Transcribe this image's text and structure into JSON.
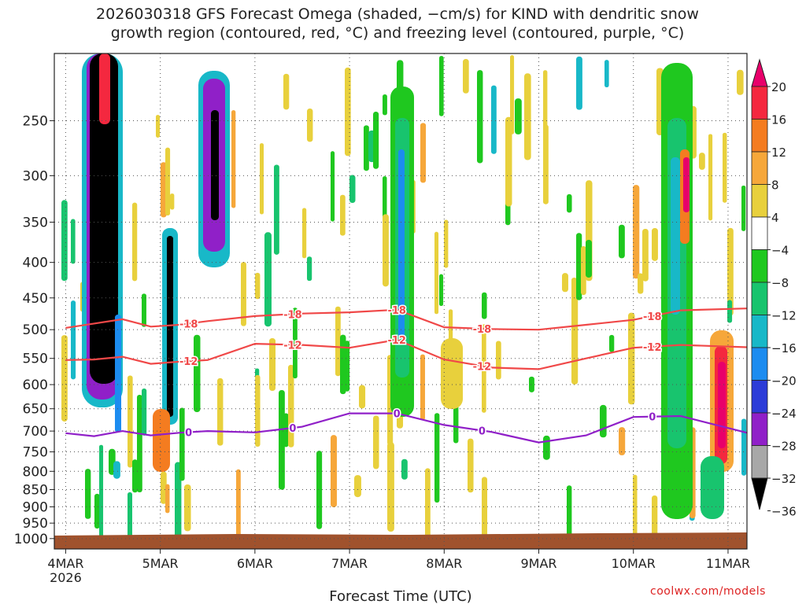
{
  "title_line1": "2026030318 GFS Forecast Omega (shaded, −cm/s) for KIND with dendritic snow",
  "title_line2": "growth region (contoured, red, °C) and freezing level (contoured, purple, °C)",
  "watermark": "coolwx.com/models",
  "chart_data": {
    "type": "heatmap",
    "xlabel": "Forecast Time (UTC)",
    "ylabel": "",
    "x_ticks": [
      "4MAR",
      "5MAR",
      "6MAR",
      "7MAR",
      "8MAR",
      "9MAR",
      "10MAR",
      "11MAR"
    ],
    "x_year_label": "2026",
    "y_ticks": [
      250,
      300,
      350,
      400,
      450,
      500,
      550,
      600,
      650,
      700,
      750,
      800,
      850,
      900,
      950,
      1000
    ],
    "y_axis": "pressure (hPa), log scale, inverted",
    "ylim": [
      1035,
      200
    ],
    "xlim_days": [
      -0.12,
      7.2
    ],
    "grid": true,
    "colorbar": {
      "tick_labels": [
        "20",
        "16",
        "12",
        "8",
        "4",
        "−4",
        "−8",
        "−12",
        "−16",
        "−20",
        "−24",
        "−28",
        "−32",
        "−36"
      ],
      "colors": [
        "#e8006a",
        "#f4283f",
        "#f47c20",
        "#f6a73a",
        "#e8d03c",
        "#ffffff",
        "#1fc81f",
        "#18c46e",
        "#18b8c8",
        "#1c8cf0",
        "#2c3cd8",
        "#9020c8",
        "#a8a8a8",
        "#000000"
      ]
    },
    "contours": [
      {
        "label": "-18",
        "color": "#f04848",
        "x": [
          0,
          0.3,
          0.6,
          0.9,
          1.2,
          1.5,
          2.0,
          2.5,
          3.0,
          3.5,
          4.0,
          4.5,
          5.0,
          5.5,
          6.0,
          6.5,
          7.2
        ],
        "p": [
          497,
          490,
          483,
          495,
          492,
          486,
          478,
          474,
          472,
          468,
          496,
          499,
          500,
          492,
          484,
          469,
          466
        ]
      },
      {
        "label": "-12",
        "color": "#f04848",
        "x": [
          0,
          0.3,
          0.6,
          0.9,
          1.2,
          1.5,
          2.0,
          2.5,
          3.0,
          3.5,
          4.0,
          4.5,
          5.0,
          5.5,
          6.0,
          6.5,
          7.2
        ],
        "p": [
          553,
          552,
          547,
          560,
          556,
          553,
          524,
          526,
          531,
          517,
          552,
          567,
          570,
          550,
          531,
          526,
          530
        ]
      },
      {
        "label": "0",
        "color": "#9020c8",
        "x": [
          0,
          0.3,
          0.6,
          0.9,
          1.2,
          1.5,
          2.0,
          2.5,
          3.0,
          3.5,
          4.0,
          4.5,
          5.0,
          5.5,
          6.0,
          6.5,
          7.2
        ],
        "p": [
          705,
          712,
          700,
          710,
          704,
          700,
          703,
          690,
          660,
          660,
          686,
          702,
          727,
          710,
          668,
          666,
          704
        ]
      }
    ],
    "surface_pressure_hPa": 985,
    "terrain_color": "#a0522d"
  }
}
